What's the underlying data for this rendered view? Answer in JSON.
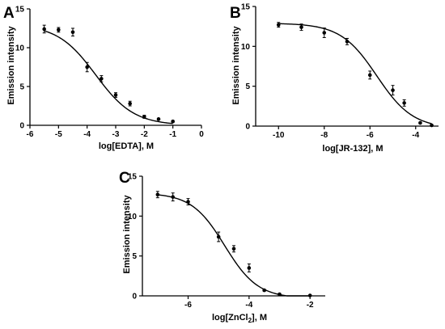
{
  "chart_data": [
    {
      "type": "scatter",
      "panel": "A",
      "xlabel": "log[EDTA], M",
      "ylabel": "Emission intensity",
      "xlim": [
        -6,
        0
      ],
      "ylim": [
        0,
        15
      ],
      "xticks": [
        -6,
        -5,
        -4,
        -3,
        -2,
        -1,
        0
      ],
      "yticks": [
        0,
        5,
        10,
        15
      ],
      "grid": false,
      "points": [
        {
          "x": -5.5,
          "y": 12.4,
          "err": 0.5
        },
        {
          "x": -5.0,
          "y": 12.3,
          "err": 0.3
        },
        {
          "x": -4.5,
          "y": 12.0,
          "err": 0.5
        },
        {
          "x": -4.0,
          "y": 7.5,
          "err": 0.6
        },
        {
          "x": -3.5,
          "y": 6.0,
          "err": 0.4
        },
        {
          "x": -3.0,
          "y": 3.9,
          "err": 0.3
        },
        {
          "x": -2.5,
          "y": 2.8,
          "err": 0.3
        },
        {
          "x": -2.0,
          "y": 1.1,
          "err": 0.2
        },
        {
          "x": -1.5,
          "y": 0.8,
          "err": 0.1
        },
        {
          "x": -1.0,
          "y": 0.5,
          "err": 0.1
        }
      ],
      "fit": {
        "top": 13.0,
        "bottom": 0.0,
        "logIC50": -3.7,
        "hill": -0.65,
        "xrange": [
          -5.5,
          -1.0
        ]
      }
    },
    {
      "type": "scatter",
      "panel": "B",
      "xlabel": "log[JR-132], M",
      "ylabel": "Emission intensity",
      "xlim": [
        -11,
        -3
      ],
      "ylim": [
        0,
        15
      ],
      "xticks": [
        -10,
        -8,
        -6,
        -4
      ],
      "yticks": [
        0,
        5,
        10,
        15
      ],
      "grid": false,
      "points": [
        {
          "x": -10,
          "y": 12.7,
          "err": 0.3
        },
        {
          "x": -9,
          "y": 12.4,
          "err": 0.4
        },
        {
          "x": -8,
          "y": 11.7,
          "err": 0.6
        },
        {
          "x": -7,
          "y": 10.6,
          "err": 0.4
        },
        {
          "x": -6,
          "y": 6.4,
          "err": 0.5
        },
        {
          "x": -5,
          "y": 4.5,
          "err": 0.6
        },
        {
          "x": -4.5,
          "y": 2.9,
          "err": 0.4
        },
        {
          "x": -3.8,
          "y": 0.4,
          "err": 0.1
        },
        {
          "x": -3.3,
          "y": 0.1,
          "err": 0.1
        }
      ],
      "fit": {
        "top": 12.9,
        "bottom": -0.3,
        "logIC50": -5.7,
        "hill": -0.55,
        "xrange": [
          -10,
          -3.3
        ]
      }
    },
    {
      "type": "scatter",
      "panel": "C",
      "xlabel_main": "log[ZnCl",
      "xlabel_sub": "2",
      "xlabel_tail": "], M",
      "ylabel": "Emission intensity",
      "xlim": [
        -7.5,
        -1.5
      ],
      "ylim": [
        0,
        15
      ],
      "xticks": [
        -6,
        -4,
        -2
      ],
      "yticks": [
        0,
        5,
        10,
        15
      ],
      "grid": false,
      "points": [
        {
          "x": -7.0,
          "y": 12.7,
          "err": 0.4
        },
        {
          "x": -6.5,
          "y": 12.4,
          "err": 0.5
        },
        {
          "x": -6.0,
          "y": 11.8,
          "err": 0.4
        },
        {
          "x": -5.0,
          "y": 7.4,
          "err": 0.6
        },
        {
          "x": -4.5,
          "y": 5.9,
          "err": 0.4
        },
        {
          "x": -4.0,
          "y": 3.5,
          "err": 0.5
        },
        {
          "x": -3.5,
          "y": 0.7,
          "err": 0.1
        },
        {
          "x": -3.0,
          "y": 0.2,
          "err": 0.1
        },
        {
          "x": -2.0,
          "y": 0.05,
          "err": 0.05
        }
      ],
      "fit": {
        "top": 12.9,
        "bottom": -0.3,
        "logIC50": -4.8,
        "hill": -0.8,
        "xrange": [
          -7.0,
          -2.0
        ]
      }
    }
  ]
}
